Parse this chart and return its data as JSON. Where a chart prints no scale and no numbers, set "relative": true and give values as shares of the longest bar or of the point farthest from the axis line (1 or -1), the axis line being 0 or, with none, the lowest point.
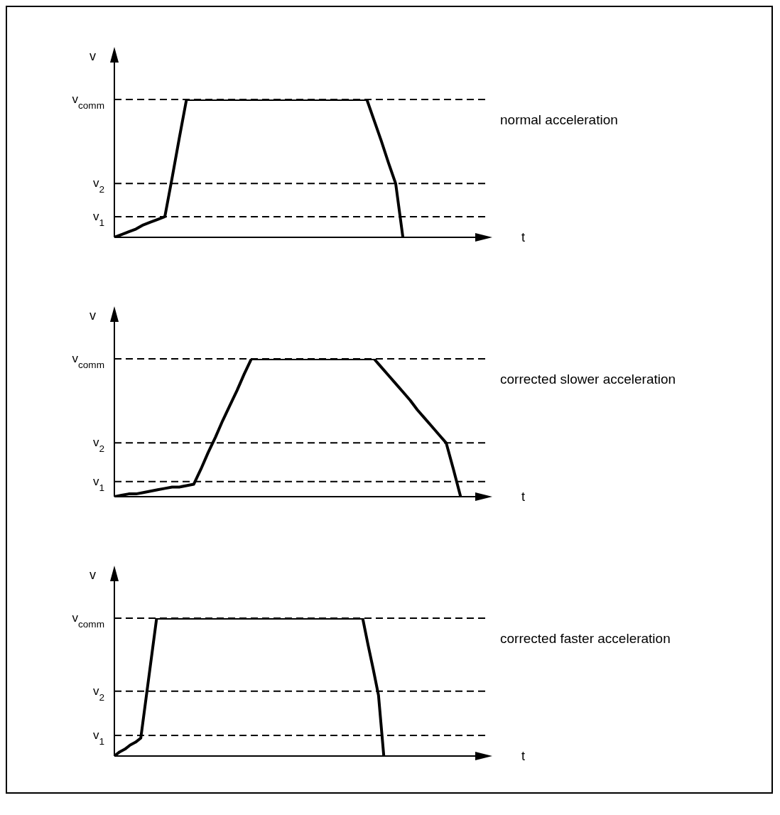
{
  "chart_data": [
    {
      "type": "line",
      "annotations": [
        "normal acceleration"
      ],
      "xlabel": "t",
      "ylabel": "v",
      "relative": true,
      "marker": "none",
      "line_style": "solid",
      "legend": false,
      "grid": false,
      "categories": [
        null,
        null,
        null,
        null,
        null,
        null,
        null,
        null,
        null,
        null,
        null,
        null,
        null,
        null,
        null,
        null,
        null,
        null,
        null,
        null,
        null,
        null,
        null,
        null,
        null,
        null,
        null,
        null,
        null,
        null,
        null,
        null,
        null,
        null,
        null,
        null,
        null,
        null,
        null,
        null,
        null,
        null,
        null,
        null,
        null,
        null,
        null,
        null,
        null,
        null,
        null,
        null,
        null
      ],
      "series": [
        {
          "color": "#000000",
          "values": [
            0,
            0.02,
            0.04,
            0.06,
            0.09,
            0.11,
            0.13,
            0.15,
            0.43,
            0.72,
            1,
            1,
            1,
            1,
            1,
            1,
            1,
            1,
            1,
            1,
            1,
            1,
            1,
            1,
            1,
            1,
            1,
            1,
            1,
            1,
            1,
            1,
            1,
            1,
            1,
            1,
            0.85,
            0.7,
            0.54,
            0.39,
            0,
            null,
            null,
            null,
            null,
            null,
            null,
            null,
            null,
            null,
            null,
            null,
            null
          ]
        }
      ],
      "ref_lines": [
        {
          "axis": "y",
          "value": 1,
          "label": "v$_{comm}$",
          "line_style": "dashed"
        },
        {
          "axis": "y",
          "value": 0.39,
          "label": "v$_{2}$",
          "line_style": "dashed"
        },
        {
          "axis": "y",
          "value": 0.15,
          "label": "v$_{1}$",
          "line_style": "dashed"
        }
      ]
    },
    {
      "type": "line",
      "annotations": [
        "corrected slower acceleration"
      ],
      "xlabel": "t",
      "ylabel": "v",
      "relative": true,
      "marker": "none",
      "line_style": "solid",
      "legend": false,
      "grid": false,
      "categories": [
        null,
        null,
        null,
        null,
        null,
        null,
        null,
        null,
        null,
        null,
        null,
        null,
        null,
        null,
        null,
        null,
        null,
        null,
        null,
        null,
        null,
        null,
        null,
        null,
        null,
        null,
        null,
        null,
        null,
        null,
        null,
        null,
        null,
        null,
        null,
        null,
        null,
        null,
        null,
        null,
        null,
        null,
        null,
        null,
        null,
        null,
        null,
        null,
        null,
        null,
        null,
        null,
        null
      ],
      "series": [
        {
          "color": "#000000",
          "values": [
            0,
            0.01,
            0.02,
            0.02,
            0.03,
            0.04,
            0.05,
            0.06,
            0.07,
            0.07,
            0.08,
            0.09,
            0.2,
            0.32,
            0.43,
            0.55,
            0.66,
            0.77,
            0.89,
            1,
            1,
            1,
            1,
            1,
            1,
            1,
            1,
            1,
            1,
            1,
            1,
            1,
            1,
            1,
            1,
            1,
            1,
            0.94,
            0.88,
            0.82,
            0.76,
            0.7,
            0.63,
            0.57,
            0.51,
            0.45,
            0.39,
            0.2,
            0,
            null,
            null,
            null,
            null
          ]
        }
      ],
      "ref_lines": [
        {
          "axis": "y",
          "value": 1,
          "label": "v$_{comm}$",
          "line_style": "dashed"
        },
        {
          "axis": "y",
          "value": 0.39,
          "label": "v$_{2}$",
          "line_style": "dashed"
        },
        {
          "axis": "y",
          "value": 0.11,
          "label": "v$_{1}$",
          "line_style": "dashed"
        }
      ]
    },
    {
      "type": "line",
      "annotations": [
        "corrected faster acceleration"
      ],
      "xlabel": "t",
      "ylabel": "v",
      "relative": true,
      "marker": "none",
      "line_style": "solid",
      "legend": false,
      "grid": false,
      "categories": [
        null,
        null,
        null,
        null,
        null,
        null,
        null,
        null,
        null,
        null,
        null,
        null,
        null,
        null,
        null,
        null,
        null,
        null,
        null,
        null,
        null,
        null,
        null,
        null,
        null,
        null,
        null,
        null,
        null,
        null,
        null,
        null,
        null,
        null,
        null,
        null,
        null,
        null,
        null,
        null,
        null,
        null,
        null,
        null,
        null,
        null,
        null,
        null,
        null,
        null,
        null,
        null,
        null,
        null,
        null,
        null,
        null,
        null,
        null,
        null,
        null,
        null,
        null,
        null,
        null,
        null,
        null,
        null,
        null,
        null,
        null,
        null
      ],
      "series": [
        {
          "color": "#000000",
          "values": [
            0,
            0.03,
            0.05,
            0.08,
            0.1,
            0.13,
            0.42,
            0.71,
            1,
            1,
            1,
            1,
            1,
            1,
            1,
            1,
            1,
            1,
            1,
            1,
            1,
            1,
            1,
            1,
            1,
            1,
            1,
            1,
            1,
            1,
            1,
            1,
            1,
            1,
            1,
            1,
            1,
            1,
            1,
            1,
            1,
            1,
            1,
            1,
            1,
            1,
            1,
            1,
            0.81,
            0.63,
            0.44,
            0,
            null,
            null,
            null,
            null,
            null,
            null,
            null,
            null,
            null,
            null,
            null,
            null,
            null,
            null,
            null,
            null,
            null,
            null,
            null,
            null
          ]
        }
      ],
      "ref_lines": [
        {
          "axis": "y",
          "value": 1,
          "label": "v$_{comm}$",
          "line_style": "dashed"
        },
        {
          "axis": "y",
          "value": 0.47,
          "label": "v$_{2}$",
          "line_style": "dashed"
        },
        {
          "axis": "y",
          "value": 0.15,
          "label": "v$_{1}$",
          "line_style": "dashed"
        }
      ]
    }
  ]
}
